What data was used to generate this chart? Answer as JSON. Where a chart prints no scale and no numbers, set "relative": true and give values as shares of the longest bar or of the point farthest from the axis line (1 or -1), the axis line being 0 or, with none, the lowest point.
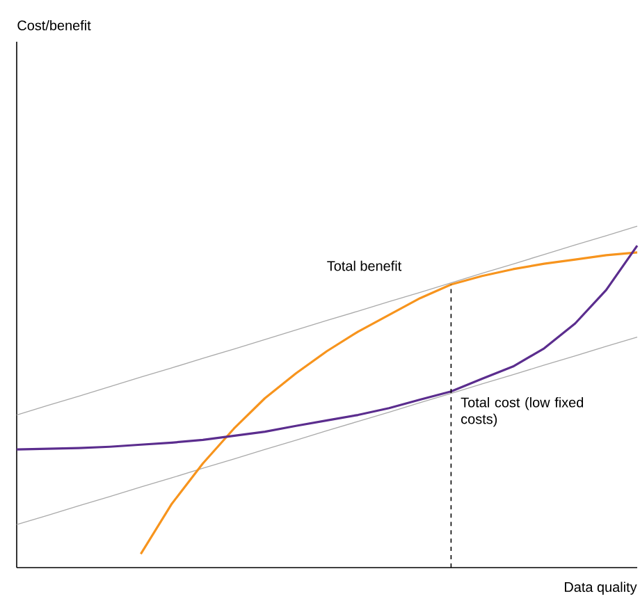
{
  "chart_data": {
    "type": "line",
    "relative": true,
    "xlabel": "Data quality",
    "marker": "none",
    "categories": [
      null,
      null,
      null,
      null,
      null,
      null,
      null,
      null,
      null,
      null,
      null,
      null,
      null,
      null,
      null,
      null,
      null,
      null,
      null,
      null,
      null
    ],
    "series": [
      {
        "color": "#aaaaaa",
        "values": [
          0.447,
          0.475,
          0.502,
          0.53,
          0.558,
          0.585,
          0.613,
          0.64,
          0.668,
          0.696,
          0.724,
          0.751,
          0.779,
          0.806,
          0.834,
          0.862,
          0.889,
          0.917,
          0.945,
          0.972,
          1.0
        ]
      },
      {
        "color": "#aaaaaa",
        "values": [
          0.126,
          0.153,
          0.181,
          0.208,
          0.236,
          0.263,
          0.291,
          0.318,
          0.346,
          0.373,
          0.401,
          0.428,
          0.455,
          0.483,
          0.51,
          0.538,
          0.565,
          0.593,
          0.62,
          0.648,
          0.675
        ]
      },
      {
        "color": "#f7941d",
        "values": [
          null,
          null,
          null,
          null,
          0.04,
          0.187,
          0.305,
          0.407,
          0.496,
          0.569,
          0.634,
          0.691,
          0.74,
          0.789,
          0.829,
          0.854,
          0.874,
          0.89,
          0.902,
          0.915,
          0.923
        ]
      },
      {
        "color": "#5b2d8e",
        "values": [
          0.346,
          0.348,
          0.35,
          0.354,
          0.36,
          0.366,
          0.374,
          0.386,
          0.398,
          0.415,
          0.431,
          0.447,
          0.467,
          0.492,
          0.516,
          0.553,
          0.589,
          0.642,
          0.715,
          0.813,
          0.943
        ]
      }
    ],
    "annotations": [
      "Cost/benefit",
      "Total benefit",
      "Total cost (low fixed costs)"
    ]
  }
}
